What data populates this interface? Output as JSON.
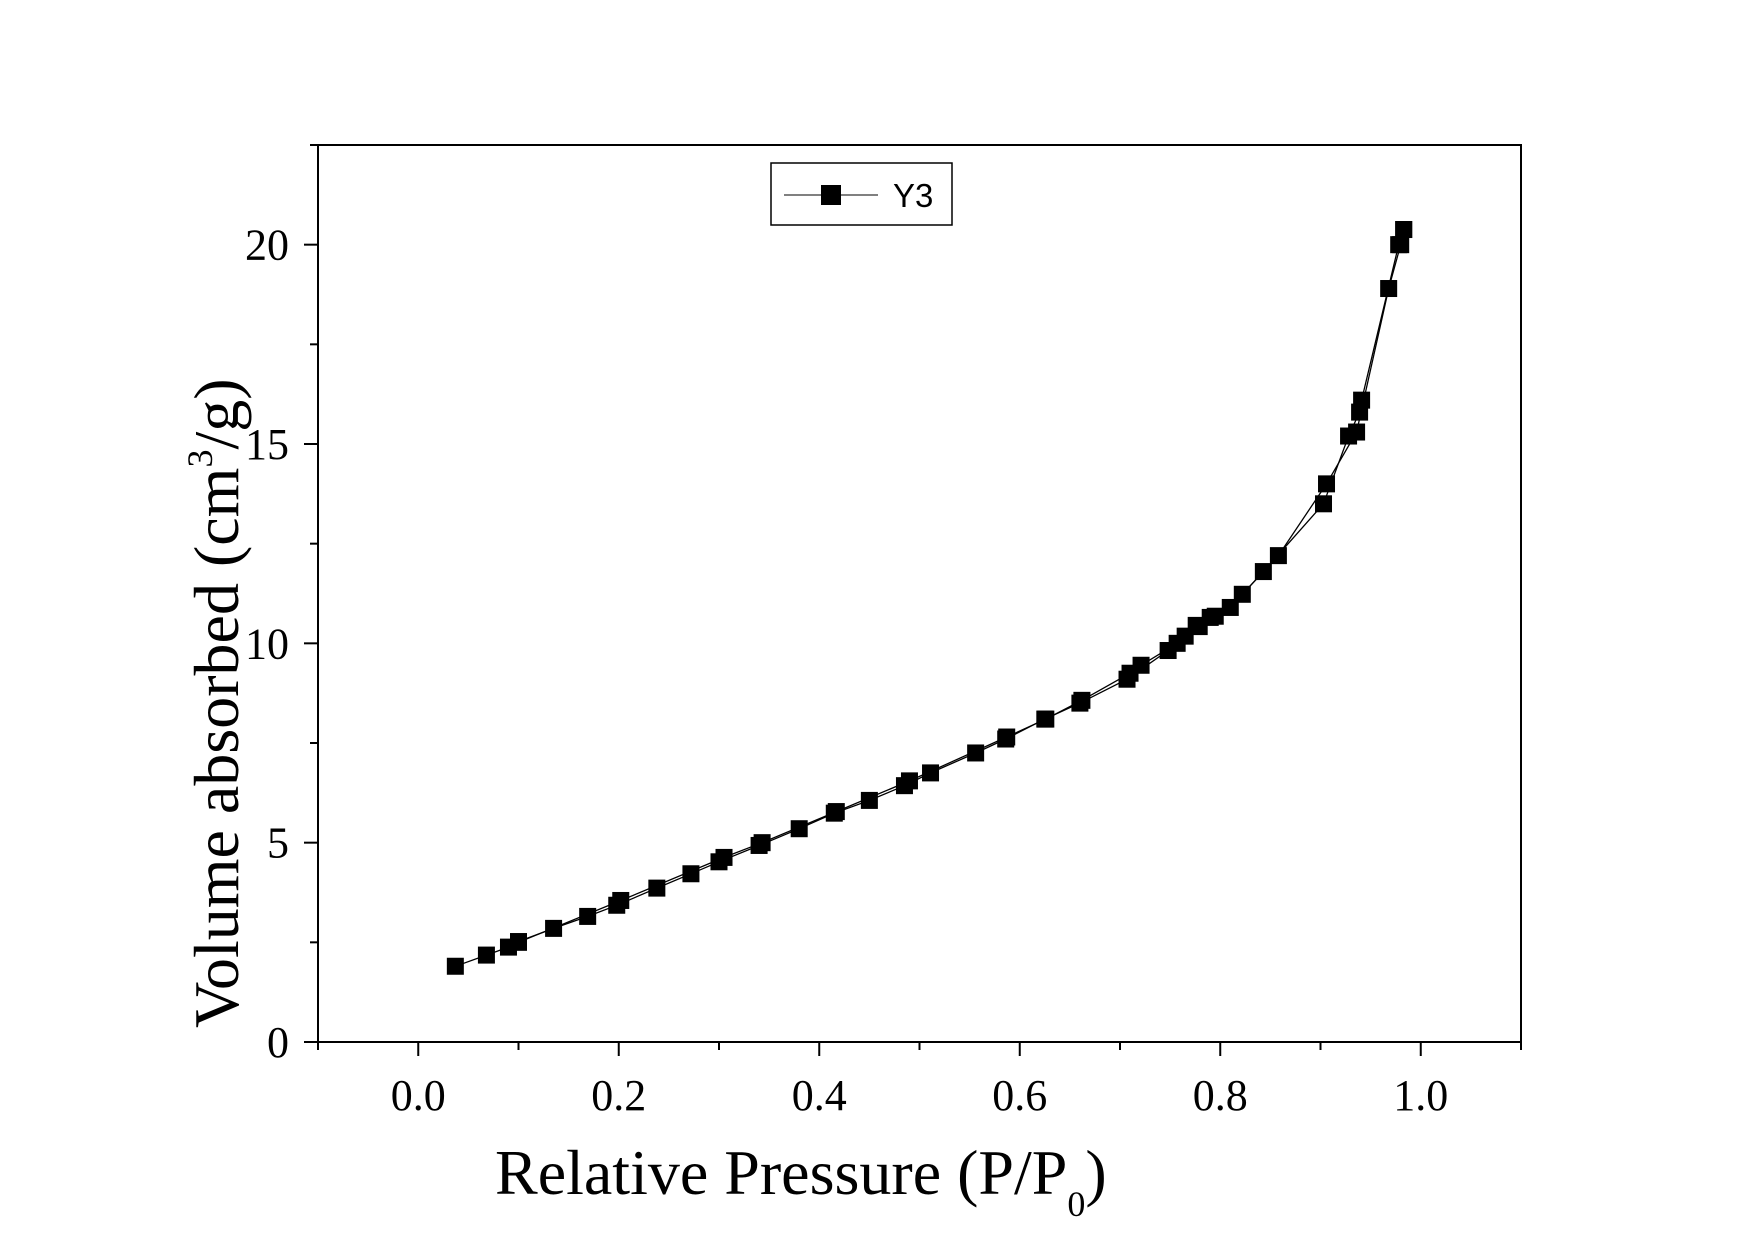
{
  "chart_data": {
    "type": "line",
    "xlabel_main": "Relative Pressure (P/P",
    "xlabel_sub": "0",
    "xlabel_end": ")",
    "ylabel_main": "Volume absorbed (cm",
    "ylabel_sup": "3",
    "ylabel_end": "/g)",
    "xlim": [
      -0.1,
      1.1
    ],
    "ylim": [
      0,
      22.5
    ],
    "xticks": [
      0.0,
      0.2,
      0.4,
      0.6,
      0.8,
      1.0
    ],
    "xtick_labels": [
      "0.0",
      "0.2",
      "0.4",
      "0.6",
      "0.8",
      "1.0"
    ],
    "yticks": [
      0,
      5,
      10,
      15,
      20
    ],
    "ytick_labels": [
      "0",
      "5",
      "10",
      "15",
      "20"
    ],
    "legend_position": "top-left",
    "series": [
      {
        "name": "Y3",
        "marker": "filled-square",
        "color": "#000000",
        "segments": [
          [
            [
              0.037,
              1.9
            ],
            [
              0.068,
              2.18
            ],
            [
              0.09,
              2.38
            ],
            [
              0.1,
              2.52
            ],
            [
              0.135,
              2.85
            ],
            [
              0.169,
              3.15
            ],
            [
              0.198,
              3.43
            ],
            [
              0.238,
              3.86
            ],
            [
              0.272,
              4.22
            ],
            [
              0.3,
              4.52
            ],
            [
              0.34,
              4.93
            ],
            [
              0.38,
              5.35
            ],
            [
              0.415,
              5.74
            ],
            [
              0.45,
              6.06
            ],
            [
              0.485,
              6.43
            ],
            [
              0.511,
              6.75
            ],
            [
              0.556,
              7.25
            ],
            [
              0.586,
              7.6
            ],
            [
              0.625,
              8.1
            ],
            [
              0.66,
              8.5
            ],
            [
              0.707,
              9.1
            ],
            [
              0.748,
              9.82
            ],
            [
              0.765,
              10.18
            ],
            [
              0.779,
              10.42
            ],
            [
              0.795,
              10.68
            ],
            [
              0.822,
              11.23
            ],
            [
              0.858,
              12.2
            ],
            [
              0.906,
              14.0
            ],
            [
              0.936,
              15.3
            ],
            [
              0.968,
              18.9
            ],
            [
              0.98,
              20.0
            ],
            [
              0.983,
              20.38
            ]
          ],
          [
            [
              0.983,
              20.38
            ],
            [
              0.978,
              20.0
            ],
            [
              0.941,
              16.1
            ],
            [
              0.939,
              15.8
            ],
            [
              0.928,
              15.2
            ],
            [
              0.903,
              13.5
            ],
            [
              0.843,
              11.8
            ],
            [
              0.81,
              10.9
            ],
            [
              0.79,
              10.65
            ],
            [
              0.776,
              10.45
            ],
            [
              0.757,
              10.0
            ],
            [
              0.721,
              9.45
            ],
            [
              0.71,
              9.25
            ],
            [
              0.662,
              8.57
            ],
            [
              0.626,
              8.1
            ],
            [
              0.587,
              7.65
            ],
            [
              0.49,
              6.55
            ],
            [
              0.417,
              5.78
            ],
            [
              0.343,
              5.0
            ],
            [
              0.305,
              4.63
            ],
            [
              0.202,
              3.55
            ],
            [
              0.1,
              2.5
            ]
          ]
        ]
      }
    ]
  }
}
